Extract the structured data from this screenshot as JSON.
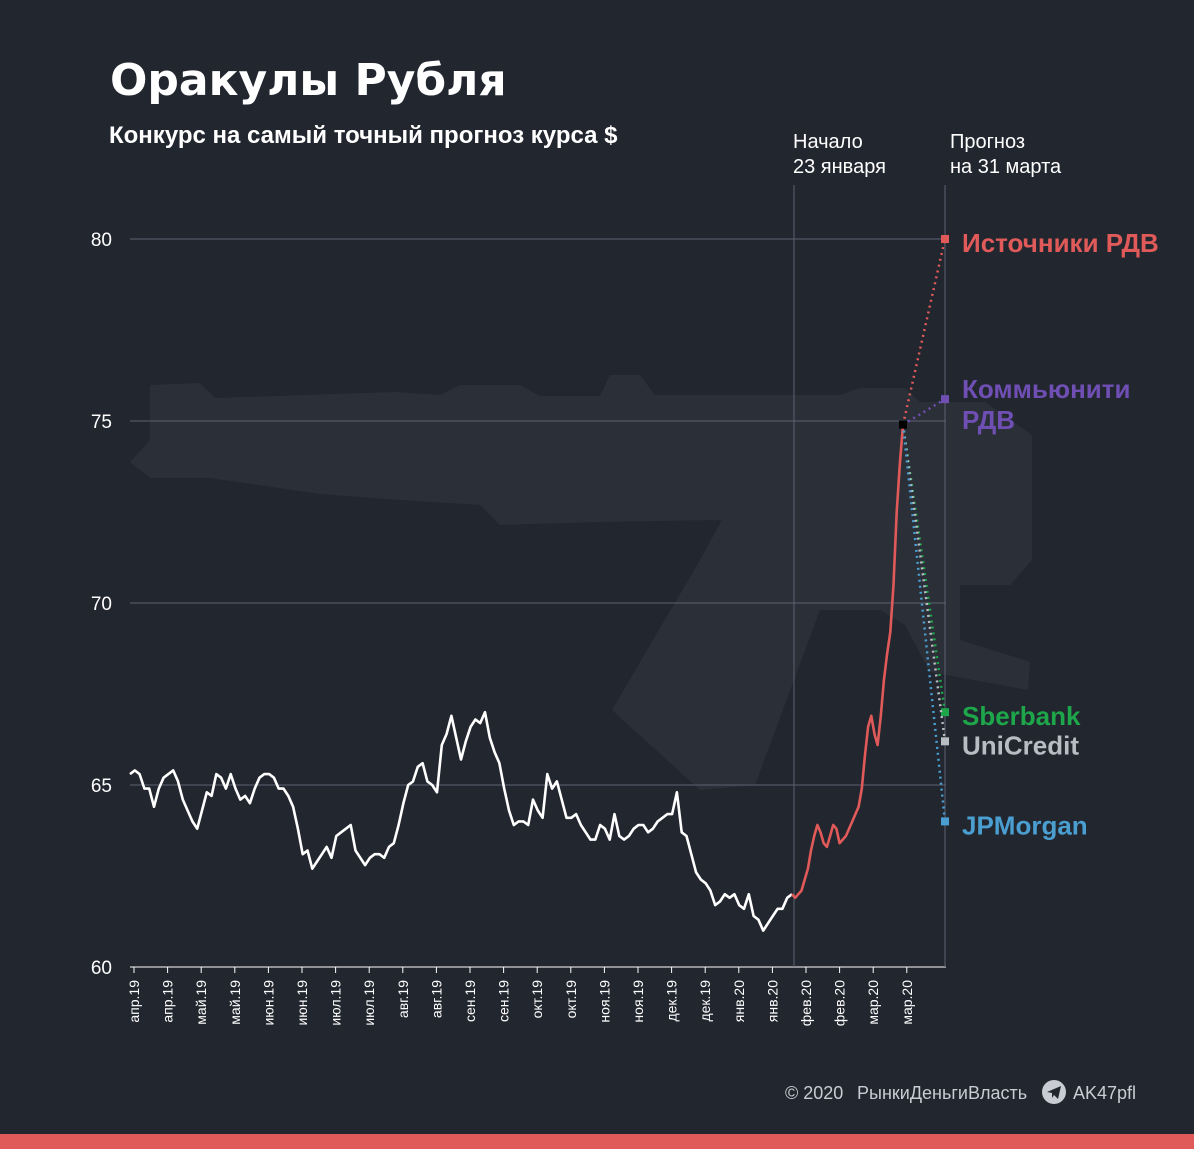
{
  "colors": {
    "background": "#22262f",
    "history": "#ffffff",
    "contest": "#e05a5a",
    "bottom_bar": "#e05a5a",
    "grid": "#5c6270",
    "weapon_silhouette": "#2b2f38"
  },
  "icons": {
    "footer_icon": "telegram-icon",
    "background": "rifle-silhouette"
  },
  "footer": {
    "copyright": "© 2020",
    "brand": "РынкиДеньгиВласть",
    "handle": "AK47pfl"
  },
  "chart_data": {
    "type": "line",
    "title": "Оракулы Рубля",
    "subtitle": "Конкурс на самый точный прогноз курса $",
    "ylim": [
      60,
      80
    ],
    "yticks": [
      60,
      65,
      70,
      75,
      80
    ],
    "grid": true,
    "x_tick_labels": [
      "апр.19",
      "апр.19",
      "май.19",
      "май.19",
      "июн.19",
      "июн.19",
      "июл.19",
      "июл.19",
      "авг.19",
      "авг.19",
      "сен.19",
      "сен.19",
      "окт.19",
      "окт.19",
      "ноя.19",
      "ноя.19",
      "дек.19",
      "дек.19",
      "янв.20",
      "янв.20",
      "фев.20",
      "фев.20",
      "мар.20",
      "мар.20"
    ],
    "start_annotation": {
      "line1": "Начало",
      "line2": "23 января"
    },
    "forecast_annotation": {
      "line1": "Прогноз",
      "line2": "на 31 марта"
    },
    "series": [
      {
        "values": [
          65.3,
          65.4,
          65.3,
          64.9,
          64.9,
          64.4,
          64.9,
          65.2,
          65.3,
          65.4,
          65.1,
          64.6,
          64.3,
          64.0,
          63.8,
          64.3,
          64.8,
          64.7,
          65.3,
          65.2,
          64.9,
          65.3,
          64.9,
          64.6,
          64.7,
          64.5,
          64.9,
          65.2,
          65.3,
          65.3,
          65.2,
          64.9,
          64.9,
          64.7,
          64.4,
          63.8,
          63.1,
          63.2,
          62.7,
          62.9,
          63.1,
          63.3,
          63.0,
          63.6,
          63.7,
          63.8,
          63.9,
          63.2,
          63.0,
          62.8,
          63.0,
          63.1,
          63.1,
          63.0,
          63.3,
          63.4,
          63.9,
          64.5,
          65.0,
          65.1,
          65.5,
          65.6,
          65.1,
          65.0,
          64.8,
          66.1,
          66.4,
          66.9,
          66.3,
          65.7,
          66.2,
          66.6,
          66.8,
          66.7,
          67.0,
          66.3,
          65.9,
          65.6,
          64.9,
          64.3,
          63.9,
          64.0,
          64.0,
          63.9,
          64.6,
          64.3,
          64.1,
          65.3,
          64.9,
          65.1,
          64.6,
          64.1,
          64.1,
          64.2,
          63.9,
          63.7,
          63.5,
          63.5,
          63.9,
          63.8,
          63.5,
          64.2,
          63.6,
          63.5,
          63.6,
          63.8,
          63.9,
          63.9,
          63.7,
          63.8,
          64.0,
          64.1,
          64.2,
          64.2,
          64.8,
          63.7,
          63.6,
          63.1,
          62.6,
          62.4,
          62.3,
          62.1,
          61.7,
          61.8,
          62.0,
          61.9,
          62.0,
          61.7,
          61.6,
          62.0,
          61.4,
          61.3,
          61.0,
          61.2,
          61.4,
          61.6,
          61.6,
          61.9,
          62.0
        ],
        "color": "#ffffff"
      },
      {
        "values": [
          62.0,
          61.9,
          62.0,
          62.1,
          62.4,
          62.7,
          63.2,
          63.6,
          63.9,
          63.7,
          63.4,
          63.3,
          63.6,
          63.9,
          63.8,
          63.4,
          63.5,
          63.6,
          63.8,
          64.0,
          64.2,
          64.4,
          64.9,
          65.8,
          66.6,
          66.9,
          66.4,
          66.1,
          66.9,
          67.9,
          68.6,
          69.2,
          70.5,
          72.5,
          73.8,
          74.9
        ],
        "color": "#e05a5a"
      }
    ],
    "forecasts": [
      {
        "name": "Источники РДВ",
        "value": 80.0,
        "color": "#e05a5a"
      },
      {
        "name": "Коммьюнити",
        "name2": "РДВ",
        "value": 75.6,
        "color": "#6f4fb3"
      },
      {
        "name": "Sberbank",
        "value": 67.0,
        "color": "#1ea64a"
      },
      {
        "name": "UniCredit",
        "value": 66.2,
        "color": "#b9bcc2"
      },
      {
        "name": "JPMorgan",
        "value": 64.0,
        "color": "#4a9fd0"
      }
    ]
  }
}
